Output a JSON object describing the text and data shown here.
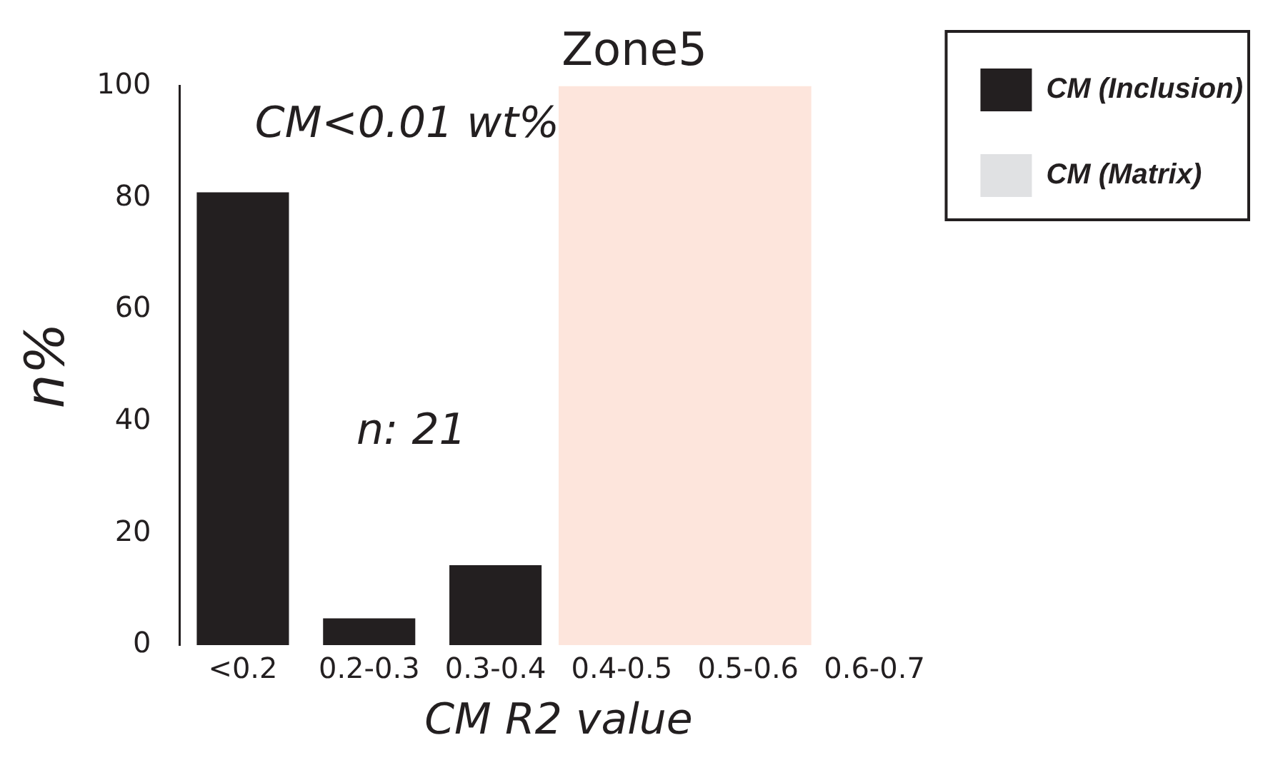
{
  "chart_data": {
    "type": "bar",
    "title": "Zone5",
    "xlabel": "CM R2 value",
    "ylabel": "n%",
    "categories": [
      "<0.2",
      "0.2-0.3",
      "0.3-0.4",
      "0.4-0.5",
      "0.5-0.6",
      "0.6-0.7"
    ],
    "series": [
      {
        "name": "CM (Inclusion)",
        "color": "#231f20",
        "values": [
          81,
          4.8,
          14.3,
          0,
          0,
          0
        ]
      },
      {
        "name": "CM (Matrix)",
        "color": "#e0e1e3",
        "values": [
          0,
          0,
          0,
          0,
          0,
          0
        ]
      }
    ],
    "ylim": [
      0,
      100
    ],
    "yticks": [
      0,
      20,
      40,
      60,
      80,
      100
    ],
    "grid": false,
    "legend": "top right",
    "bands": [
      {
        "axis": "x",
        "from": "0.4-0.5",
        "to": "0.5-0.6",
        "color": "#fde5dc"
      }
    ],
    "annotations": [
      "CM<0.01 wt%",
      "n: 21"
    ]
  }
}
